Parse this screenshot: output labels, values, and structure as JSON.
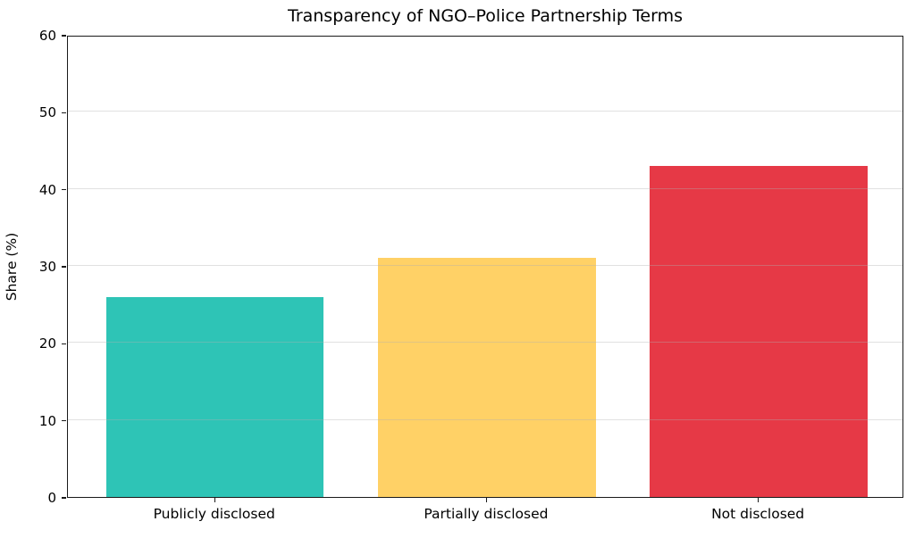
{
  "chart_data": {
    "type": "bar",
    "title": "Transparency of NGO–Police Partnership Terms",
    "ylabel": "Share (%)",
    "xlabel": "",
    "categories": [
      "Publicly disclosed",
      "Partially disclosed",
      "Not disclosed"
    ],
    "values": [
      26,
      31,
      43
    ],
    "bar_colors": [
      "#2EC4B6",
      "#FFD166",
      "#E63946"
    ],
    "ylim": [
      0,
      60
    ],
    "yticks": [
      0,
      10,
      20,
      30,
      40,
      50,
      60
    ],
    "grid": "horizontal-light-over-bars",
    "legend": "none",
    "spines": "full-box"
  }
}
